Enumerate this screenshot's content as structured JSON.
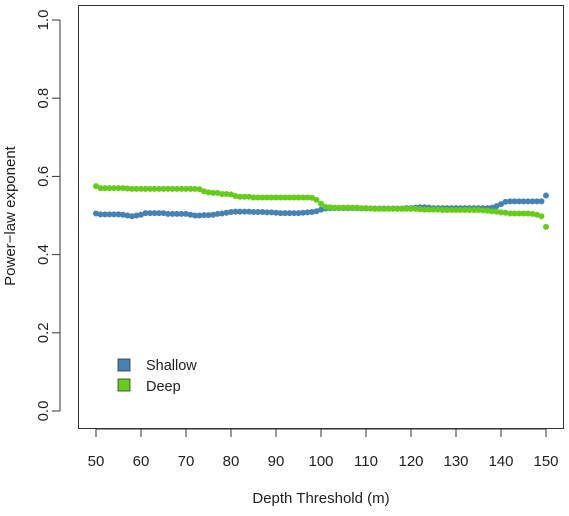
{
  "chart_data": {
    "type": "scatter",
    "xlabel": "Depth Threshold (m)",
    "ylabel": "Power−law exponent",
    "xlim": [
      50,
      150
    ],
    "ylim": [
      0,
      1
    ],
    "x_ticks": [
      "50",
      "60",
      "70",
      "80",
      "90",
      "100",
      "110",
      "120",
      "130",
      "140",
      "150"
    ],
    "y_ticks": [
      "0.0",
      "0.2",
      "0.4",
      "0.6",
      "0.8",
      "1.0"
    ],
    "legend_position": "bottom-left",
    "grid": false,
    "series": [
      {
        "name": "Shallow",
        "color": "#4682b4",
        "points": [
          [
            50,
            0.505
          ],
          [
            51,
            0.503
          ],
          [
            52,
            0.503
          ],
          [
            53,
            0.503
          ],
          [
            54,
            0.503
          ],
          [
            55,
            0.503
          ],
          [
            56,
            0.502
          ],
          [
            57,
            0.5
          ],
          [
            58,
            0.498
          ],
          [
            59,
            0.5
          ],
          [
            60,
            0.502
          ],
          [
            61,
            0.506
          ],
          [
            62,
            0.506
          ],
          [
            63,
            0.506
          ],
          [
            64,
            0.506
          ],
          [
            65,
            0.506
          ],
          [
            66,
            0.504
          ],
          [
            67,
            0.504
          ],
          [
            68,
            0.504
          ],
          [
            69,
            0.504
          ],
          [
            70,
            0.504
          ],
          [
            71,
            0.502
          ],
          [
            72,
            0.5
          ],
          [
            73,
            0.5
          ],
          [
            74,
            0.501
          ],
          [
            75,
            0.501
          ],
          [
            76,
            0.502
          ],
          [
            77,
            0.504
          ],
          [
            78,
            0.505
          ],
          [
            79,
            0.507
          ],
          [
            80,
            0.509
          ],
          [
            81,
            0.51
          ],
          [
            82,
            0.51
          ],
          [
            83,
            0.51
          ],
          [
            84,
            0.51
          ],
          [
            85,
            0.509
          ],
          [
            86,
            0.509
          ],
          [
            87,
            0.509
          ],
          [
            88,
            0.508
          ],
          [
            89,
            0.508
          ],
          [
            90,
            0.507
          ],
          [
            91,
            0.506
          ],
          [
            92,
            0.506
          ],
          [
            93,
            0.506
          ],
          [
            94,
            0.506
          ],
          [
            95,
            0.506
          ],
          [
            96,
            0.507
          ],
          [
            97,
            0.508
          ],
          [
            98,
            0.509
          ],
          [
            99,
            0.511
          ],
          [
            100,
            0.515
          ],
          [
            101,
            0.518
          ],
          [
            102,
            0.519
          ],
          [
            103,
            0.519
          ],
          [
            104,
            0.519
          ],
          [
            105,
            0.519
          ],
          [
            106,
            0.519
          ],
          [
            107,
            0.519
          ],
          [
            108,
            0.519
          ],
          [
            109,
            0.518
          ],
          [
            110,
            0.518
          ],
          [
            111,
            0.518
          ],
          [
            112,
            0.518
          ],
          [
            113,
            0.518
          ],
          [
            114,
            0.518
          ],
          [
            115,
            0.518
          ],
          [
            116,
            0.518
          ],
          [
            117,
            0.518
          ],
          [
            118,
            0.518
          ],
          [
            119,
            0.519
          ],
          [
            120,
            0.519
          ],
          [
            121,
            0.52
          ],
          [
            122,
            0.521
          ],
          [
            123,
            0.521
          ],
          [
            124,
            0.52
          ],
          [
            125,
            0.519
          ],
          [
            126,
            0.519
          ],
          [
            127,
            0.519
          ],
          [
            128,
            0.519
          ],
          [
            129,
            0.519
          ],
          [
            130,
            0.519
          ],
          [
            131,
            0.519
          ],
          [
            132,
            0.519
          ],
          [
            133,
            0.519
          ],
          [
            134,
            0.519
          ],
          [
            135,
            0.519
          ],
          [
            136,
            0.519
          ],
          [
            137,
            0.519
          ],
          [
            138,
            0.52
          ],
          [
            139,
            0.524
          ],
          [
            140,
            0.529
          ],
          [
            141,
            0.535
          ],
          [
            142,
            0.536
          ],
          [
            143,
            0.536
          ],
          [
            144,
            0.536
          ],
          [
            145,
            0.536
          ],
          [
            146,
            0.536
          ],
          [
            147,
            0.536
          ],
          [
            148,
            0.536
          ],
          [
            149,
            0.536
          ],
          [
            150,
            0.551
          ]
        ]
      },
      {
        "name": "Deep",
        "color": "#66cc1a",
        "points": [
          [
            50,
            0.575
          ],
          [
            51,
            0.57
          ],
          [
            52,
            0.57
          ],
          [
            53,
            0.57
          ],
          [
            54,
            0.57
          ],
          [
            55,
            0.57
          ],
          [
            56,
            0.57
          ],
          [
            57,
            0.569
          ],
          [
            58,
            0.568
          ],
          [
            59,
            0.568
          ],
          [
            60,
            0.568
          ],
          [
            61,
            0.568
          ],
          [
            62,
            0.568
          ],
          [
            63,
            0.568
          ],
          [
            64,
            0.568
          ],
          [
            65,
            0.568
          ],
          [
            66,
            0.568
          ],
          [
            67,
            0.568
          ],
          [
            68,
            0.568
          ],
          [
            69,
            0.568
          ],
          [
            70,
            0.568
          ],
          [
            71,
            0.568
          ],
          [
            72,
            0.568
          ],
          [
            73,
            0.567
          ],
          [
            74,
            0.562
          ],
          [
            75,
            0.559
          ],
          [
            76,
            0.558
          ],
          [
            77,
            0.558
          ],
          [
            78,
            0.555
          ],
          [
            79,
            0.555
          ],
          [
            80,
            0.554
          ],
          [
            81,
            0.55
          ],
          [
            82,
            0.548
          ],
          [
            83,
            0.548
          ],
          [
            84,
            0.548
          ],
          [
            85,
            0.546
          ],
          [
            86,
            0.546
          ],
          [
            87,
            0.546
          ],
          [
            88,
            0.546
          ],
          [
            89,
            0.546
          ],
          [
            90,
            0.546
          ],
          [
            91,
            0.546
          ],
          [
            92,
            0.546
          ],
          [
            93,
            0.546
          ],
          [
            94,
            0.546
          ],
          [
            95,
            0.546
          ],
          [
            96,
            0.546
          ],
          [
            97,
            0.546
          ],
          [
            98,
            0.545
          ],
          [
            99,
            0.54
          ],
          [
            100,
            0.53
          ],
          [
            101,
            0.522
          ],
          [
            102,
            0.521
          ],
          [
            103,
            0.52
          ],
          [
            104,
            0.52
          ],
          [
            105,
            0.52
          ],
          [
            106,
            0.52
          ],
          [
            107,
            0.52
          ],
          [
            108,
            0.52
          ],
          [
            109,
            0.519
          ],
          [
            110,
            0.519
          ],
          [
            111,
            0.518
          ],
          [
            112,
            0.517
          ],
          [
            113,
            0.517
          ],
          [
            114,
            0.517
          ],
          [
            115,
            0.517
          ],
          [
            116,
            0.517
          ],
          [
            117,
            0.517
          ],
          [
            118,
            0.517
          ],
          [
            119,
            0.517
          ],
          [
            120,
            0.517
          ],
          [
            121,
            0.517
          ],
          [
            122,
            0.516
          ],
          [
            123,
            0.515
          ],
          [
            124,
            0.515
          ],
          [
            125,
            0.515
          ],
          [
            126,
            0.515
          ],
          [
            127,
            0.514
          ],
          [
            128,
            0.514
          ],
          [
            129,
            0.514
          ],
          [
            130,
            0.514
          ],
          [
            131,
            0.514
          ],
          [
            132,
            0.514
          ],
          [
            133,
            0.514
          ],
          [
            134,
            0.514
          ],
          [
            135,
            0.514
          ],
          [
            136,
            0.513
          ],
          [
            137,
            0.512
          ],
          [
            138,
            0.511
          ],
          [
            139,
            0.51
          ],
          [
            140,
            0.508
          ],
          [
            141,
            0.507
          ],
          [
            142,
            0.505
          ],
          [
            143,
            0.505
          ],
          [
            144,
            0.505
          ],
          [
            145,
            0.505
          ],
          [
            146,
            0.505
          ],
          [
            147,
            0.504
          ],
          [
            148,
            0.502
          ],
          [
            149,
            0.498
          ],
          [
            150,
            0.471
          ]
        ]
      }
    ]
  }
}
